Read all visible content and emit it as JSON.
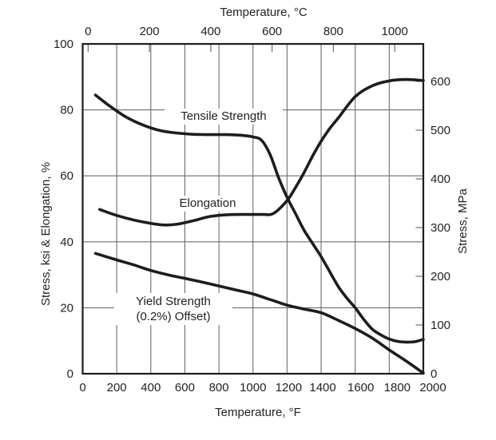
{
  "figure": {
    "titles": {
      "top": "Temperature, °C",
      "bottom": "Temperature, °F",
      "left": "Stress, ksi & Elongation, %",
      "right": "Stress, MPa"
    },
    "curve_labels": {
      "tensile": "Tensile Strength",
      "elongation": "Elongation",
      "yield_line1": "Yield Strength",
      "yield_line2": "(0.2%) Offset)"
    },
    "colors": {
      "background": "#ffffff",
      "text": "#231f20",
      "curve": "#1d1d1f",
      "grid": "#6d6e71",
      "border": "#1d1d1f"
    }
  },
  "chart_data": {
    "type": "line",
    "title": "",
    "grid": true,
    "x_axis_bottom": {
      "label": "Temperature, °F",
      "range": [
        0,
        2000
      ],
      "ticks": [
        0,
        200,
        400,
        600,
        800,
        1000,
        1200,
        1400,
        1600,
        1800,
        2000
      ]
    },
    "x_axis_top": {
      "label": "Temperature, °C",
      "ticks": [
        0,
        200,
        400,
        600,
        800,
        1000
      ]
    },
    "y_axis_left": {
      "label": "Stress, ksi & Elongation, %",
      "range": [
        0,
        100
      ],
      "ticks": [
        0,
        20,
        40,
        60,
        80,
        100
      ]
    },
    "y_axis_right": {
      "label": "Stress, MPa",
      "range": [
        0,
        600
      ],
      "ticks": [
        0,
        100,
        200,
        300,
        400,
        500,
        600
      ]
    },
    "series": [
      {
        "name": "Tensile Strength",
        "unit": "ksi (left axis)",
        "x_f": [
          75,
          150,
          250,
          350,
          450,
          550,
          650,
          750,
          850,
          950,
          1000,
          1050,
          1100,
          1150,
          1200,
          1250,
          1300,
          1350,
          1400,
          1450,
          1500,
          1550,
          1600,
          1650,
          1700,
          1750,
          1800,
          1850,
          1900,
          1950,
          2000
        ],
        "y": [
          84.5,
          81.5,
          78.0,
          75.5,
          73.8,
          73.0,
          72.6,
          72.5,
          72.5,
          72.2,
          71.8,
          70.8,
          66.5,
          59.5,
          53.5,
          48.5,
          43.5,
          39.5,
          35.5,
          31.0,
          26.5,
          23.0,
          20.0,
          16.5,
          13.5,
          11.8,
          10.5,
          9.8,
          9.6,
          9.7,
          10.4
        ]
      },
      {
        "name": "Elongation",
        "unit": "% (left axis)",
        "x_f": [
          100,
          200,
          300,
          400,
          475,
          550,
          650,
          750,
          850,
          950,
          1050,
          1120,
          1200,
          1250,
          1300,
          1350,
          1400,
          1450,
          1500,
          1600,
          1700,
          1800,
          1900,
          2000
        ],
        "y": [
          49.8,
          48.0,
          46.6,
          45.6,
          45.1,
          45.3,
          46.4,
          47.7,
          48.2,
          48.3,
          48.3,
          48.6,
          52.5,
          56.5,
          61.0,
          66.0,
          70.5,
          74.3,
          77.5,
          84.0,
          87.3,
          88.8,
          89.2,
          88.9
        ]
      },
      {
        "name": "Yield Strength (0.2%) Offset",
        "unit": "ksi (left axis)",
        "x_f": [
          75,
          200,
          300,
          400,
          500,
          600,
          700,
          800,
          900,
          1000,
          1100,
          1200,
          1300,
          1400,
          1500,
          1600,
          1700,
          1800,
          1900,
          2000
        ],
        "y": [
          36.5,
          34.5,
          33.0,
          31.3,
          30.0,
          28.9,
          27.8,
          26.6,
          25.4,
          24.2,
          22.5,
          20.8,
          19.6,
          18.5,
          16.2,
          13.7,
          10.8,
          7.2,
          3.8,
          0.2
        ]
      }
    ]
  }
}
